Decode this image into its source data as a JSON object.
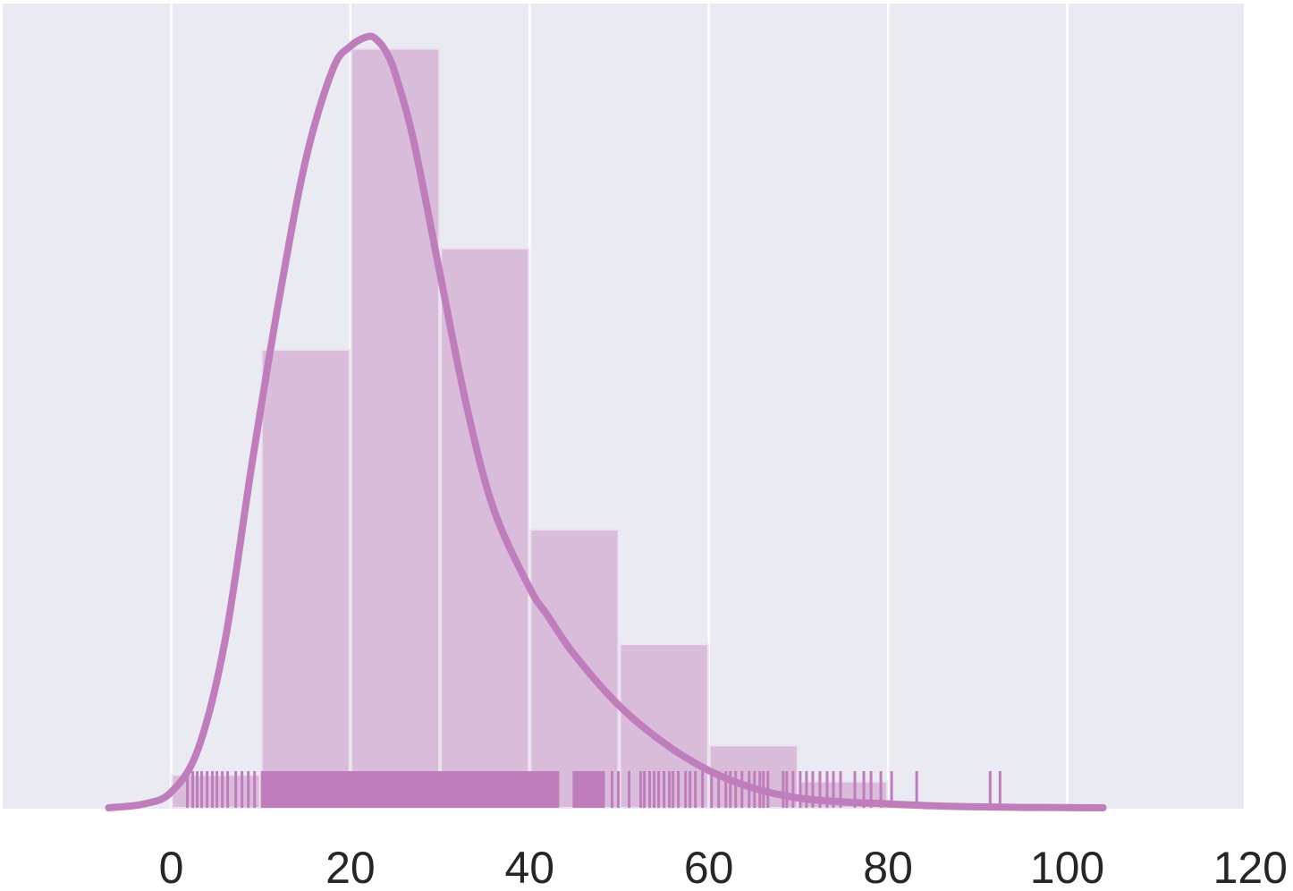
{
  "chart_data": {
    "type": "histogram",
    "title": "",
    "xlabel": "",
    "ylabel": "",
    "xlim": [
      -19,
      120
    ],
    "grid": true,
    "colors": {
      "background": "#eaeaf2",
      "grid": "#ffffff",
      "bar_fill": "#d8bcda",
      "bar_edge": "#ece1ee",
      "kde_line": "#bf7dbb",
      "rug": "#bf7dbb"
    },
    "xticks": [
      0,
      20,
      40,
      60,
      80,
      100,
      120
    ],
    "xtick_labels": [
      "0",
      "20",
      "40",
      "60",
      "80",
      "100",
      "120"
    ],
    "histogram": {
      "bin_edges": [
        0,
        10,
        20,
        30,
        40,
        50,
        60,
        70,
        80
      ],
      "densities": [
        0.00167,
        0.02333,
        0.03867,
        0.0285,
        0.01417,
        0.00833,
        0.00317,
        0.00133
      ],
      "ymax_density": 0.0388
    },
    "kde": {
      "x": [
        -7,
        -3,
        0,
        3,
        6,
        9,
        12,
        15,
        18,
        20,
        22,
        23,
        24,
        25,
        27,
        30,
        33,
        36,
        40,
        42,
        45,
        50,
        55,
        60,
        65,
        70,
        75,
        80,
        85,
        90,
        95,
        100,
        104
      ],
      "y": [
        0.0,
        0.0002,
        0.0008,
        0.003,
        0.0085,
        0.0175,
        0.0258,
        0.033,
        0.0376,
        0.0388,
        0.0393,
        0.0391,
        0.0385,
        0.0374,
        0.0341,
        0.0272,
        0.0204,
        0.0152,
        0.0112,
        0.0098,
        0.0078,
        0.0052,
        0.0033,
        0.0019,
        0.001,
        0.0005,
        0.0003,
        0.0002,
        0.0001,
        5e-05,
        2e-05,
        1e-05,
        0.0
      ]
    },
    "rug": {
      "dense_ranges": [
        [
          10,
          43.3
        ],
        [
          44.8,
          48.4
        ]
      ],
      "x": [
        1.8,
        2.4,
        2.9,
        3.4,
        4.0,
        4.6,
        5.1,
        5.7,
        6.3,
        7.2,
        7.9,
        8.6,
        9.3,
        49.2,
        49.9,
        51.1,
        52.4,
        52.8,
        53.4,
        53.9,
        54.4,
        55.0,
        55.6,
        56.0,
        56.6,
        57.4,
        57.9,
        58.5,
        59.3,
        60.3,
        61.1,
        61.9,
        62.4,
        63.0,
        63.7,
        64.5,
        65.1,
        65.7,
        66.1,
        66.6,
        68.3,
        68.7,
        69.4,
        70.2,
        70.9,
        71.6,
        72.4,
        73.2,
        73.9,
        74.7,
        76.3,
        77.3,
        78.1,
        79.2,
        80.4,
        83.2,
        91.4,
        92.5
      ]
    }
  }
}
